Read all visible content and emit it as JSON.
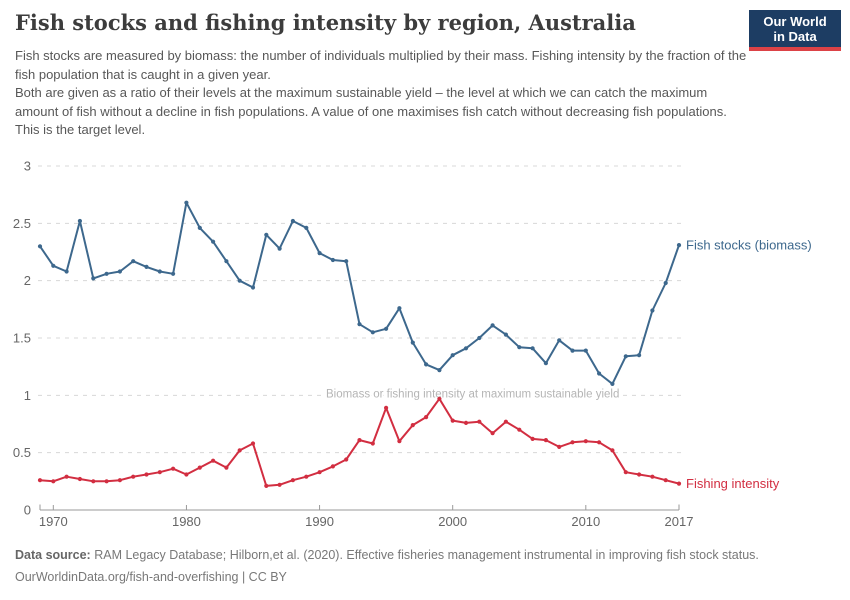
{
  "header": {
    "title": "Fish stocks and fishing intensity by region, Australia",
    "subtitle_p1": "Fish stocks are measured by biomass: the number of individuals multiplied by their mass. Fishing intensity by the fraction of the fish population that is caught in a given year.",
    "subtitle_p2": "Both are given as a ratio of their levels at the maximum sustainable yield – the level at which we can catch the maximum amount of fish without a decline in fish populations. A value of one maximises fish catch without decreasing fish populations. This is the target level.",
    "logo": {
      "line1": "Our World",
      "line2": "in Data",
      "bg_color": "#1d3d63",
      "bar_color": "#dc4246"
    }
  },
  "chart_data": {
    "type": "line",
    "x": [
      1969,
      1970,
      1971,
      1972,
      1973,
      1974,
      1975,
      1976,
      1977,
      1978,
      1979,
      1980,
      1981,
      1982,
      1983,
      1984,
      1985,
      1986,
      1987,
      1988,
      1989,
      1990,
      1991,
      1992,
      1993,
      1994,
      1995,
      1996,
      1997,
      1998,
      1999,
      2000,
      2001,
      2002,
      2003,
      2004,
      2005,
      2006,
      2007,
      2008,
      2009,
      2010,
      2011,
      2012,
      2013,
      2014,
      2015,
      2016,
      2017
    ],
    "series": [
      {
        "name": "Fish stocks (biomass)",
        "color": "#3d688d",
        "values": [
          2.3,
          2.13,
          2.08,
          2.52,
          2.02,
          2.06,
          2.08,
          2.17,
          2.12,
          2.08,
          2.06,
          2.68,
          2.46,
          2.34,
          2.17,
          2.0,
          1.94,
          2.4,
          2.28,
          2.52,
          2.46,
          2.24,
          2.18,
          2.17,
          1.62,
          1.55,
          1.58,
          1.76,
          1.46,
          1.27,
          1.22,
          1.35,
          1.41,
          1.5,
          1.61,
          1.53,
          1.42,
          1.41,
          1.28,
          1.48,
          1.39,
          1.39,
          1.19,
          1.1,
          1.34,
          1.35,
          1.74,
          1.98,
          2.31
        ]
      },
      {
        "name": "Fishing intensity",
        "color": "#d22e41",
        "values": [
          0.26,
          0.25,
          0.29,
          0.27,
          0.25,
          0.25,
          0.26,
          0.29,
          0.31,
          0.33,
          0.36,
          0.31,
          0.37,
          0.43,
          0.37,
          0.52,
          0.58,
          0.21,
          0.22,
          0.26,
          0.29,
          0.33,
          0.38,
          0.44,
          0.61,
          0.58,
          0.89,
          0.6,
          0.74,
          0.81,
          0.97,
          0.78,
          0.76,
          0.77,
          0.67,
          0.77,
          0.7,
          0.62,
          0.61,
          0.55,
          0.59,
          0.6,
          0.59,
          0.52,
          0.33,
          0.31,
          0.29,
          0.26,
          0.23
        ]
      }
    ],
    "title": "Fish stocks and fishing intensity by region, Australia",
    "xlabel": "",
    "ylabel": "",
    "xlim": [
      1969,
      2017
    ],
    "ylim": [
      0,
      3
    ],
    "yticks": [
      "0",
      "0.5",
      "1",
      "1.5",
      "2",
      "2.5",
      "3"
    ],
    "xticks": [
      1970,
      1980,
      1990,
      2000,
      2010,
      2017
    ],
    "grid": "horizontal-dashed",
    "legend": "end-of-line-labels",
    "annotation": {
      "text": "Biomass or fishing intensity at maximum sustainable yield",
      "y_value": 1,
      "center_year": 2001.5,
      "color": "#b5b5b5"
    },
    "axis_color": "#9a9a9a",
    "tick_label_color": "#666666",
    "gridline_color": "#d8d8d8"
  },
  "footer": {
    "source_label": "Data source:",
    "source_text": " RAM Legacy Database; Hilborn,et al. (2020). Effective fisheries management instrumental in improving fish stock status.",
    "license_line": "OurWorldinData.org/fish-and-overfishing | CC BY"
  }
}
